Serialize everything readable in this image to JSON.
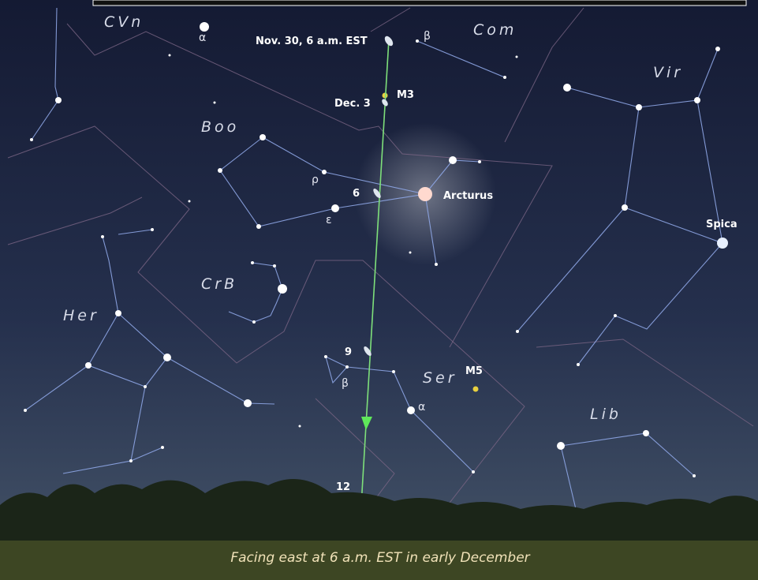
{
  "constellations": [
    "CVn",
    "Com",
    "Vir",
    "Boo",
    "CrB",
    "Her",
    "Ser",
    "Lib"
  ],
  "star_labels": [
    "α",
    "β",
    "ρ",
    "ε",
    "β",
    "α"
  ],
  "objects": [
    "Arcturus",
    "Spica",
    "M3",
    "M5"
  ],
  "comet_positions": [
    "Nov. 30, 6 a.m. EST",
    "Dec. 3",
    "6",
    "9",
    "12"
  ],
  "caption": "Facing east at 6 a.m. EST  in early December"
}
